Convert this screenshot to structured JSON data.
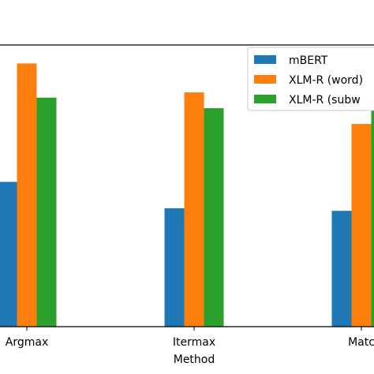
{
  "chart_data": {
    "type": "bar",
    "title": "",
    "xlabel": "Method",
    "ylabel": "",
    "categories": [
      "Argmax",
      "Itermax",
      "Matc"
    ],
    "series": [
      {
        "name": "mBERT",
        "color": "#1f77b4",
        "values": [
          0.55,
          0.45,
          0.44
        ]
      },
      {
        "name": "XLM-R (word)",
        "color": "#ff7f0e",
        "values": [
          1.0,
          0.89,
          0.77
        ]
      },
      {
        "name": "XLM-R (subw",
        "color": "#2ca02c",
        "values": [
          0.87,
          0.83,
          0.82
        ]
      }
    ],
    "ylim": [
      0,
      1.07
    ],
    "grid": false,
    "legend_position": "top-right"
  }
}
